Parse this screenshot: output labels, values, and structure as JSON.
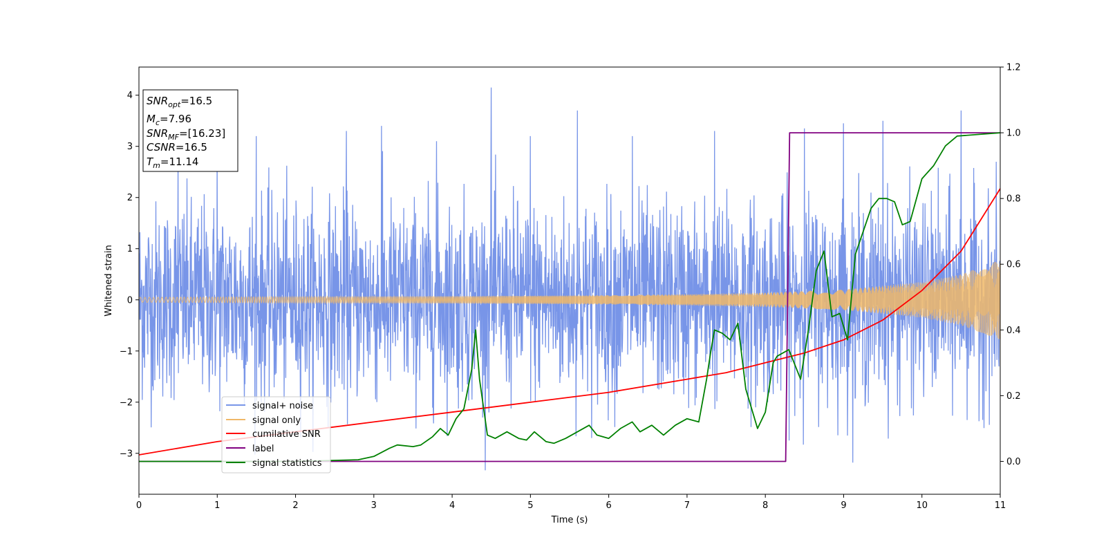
{
  "chart_data": {
    "type": "line",
    "xlabel": "Time (s)",
    "ylabel": "Whitened strain",
    "xlim": [
      0,
      11
    ],
    "ylim": [
      -3.8,
      4.55
    ],
    "y2lim": [
      -0.1,
      1.2
    ],
    "x_ticks": [
      "0",
      "1",
      "2",
      "3",
      "4",
      "5",
      "6",
      "7",
      "8",
      "9",
      "10",
      "11"
    ],
    "y_ticks": [
      "−3",
      "−2",
      "−1",
      "0",
      "1",
      "2",
      "3",
      "4"
    ],
    "y2_ticks": [
      "0.0",
      "0.2",
      "0.4",
      "0.6",
      "0.8",
      "1.0",
      "1.2"
    ],
    "grid": false,
    "legend_position": "lower-left",
    "annotation": {
      "line1": {
        "base": "SNR",
        "sub": "opt",
        "value": "=16.5"
      },
      "line2": {
        "base": "M",
        "sub": "c",
        "value": "=7.96"
      },
      "line3": {
        "base": "SNR",
        "sub": "MF",
        "value": "=[16.23]"
      },
      "line4": {
        "base": "CSNR",
        "sub": "",
        "value": "=16.5"
      },
      "line5": {
        "base": "T",
        "sub": "m",
        "value": "=11.14"
      }
    },
    "series": [
      {
        "name": "signal+ noise",
        "color": "#7895e8",
        "axis": "left",
        "style": "dense noise band",
        "peaks_x": [
          0.5,
          1.0,
          1.5,
          2.65,
          3.1,
          3.8,
          4.5,
          5.0,
          5.6,
          6.3,
          7.35,
          8.5,
          9.0,
          9.5,
          10.5
        ],
        "peaks_y": [
          2.9,
          3.1,
          3.2,
          3.3,
          3.4,
          3.1,
          4.15,
          3.2,
          3.7,
          3.2,
          3.3,
          3.35,
          3.45,
          3.5,
          3.7
        ]
      },
      {
        "name": "signal only",
        "color": "#f0b868",
        "axis": "left",
        "style": "chirp envelope",
        "x": [
          0,
          2,
          4,
          6,
          7,
          8,
          9,
          10,
          10.5,
          11
        ],
        "amplitude": [
          0.05,
          0.06,
          0.07,
          0.09,
          0.11,
          0.14,
          0.2,
          0.35,
          0.5,
          0.78
        ]
      },
      {
        "name": "cumilative SNR",
        "color": "#ff0000",
        "axis": "right",
        "x": [
          0,
          1,
          2,
          3,
          4,
          5,
          6,
          7,
          7.5,
          8,
          8.5,
          9,
          9.5,
          10,
          10.5,
          11
        ],
        "values": [
          0.02,
          0.06,
          0.09,
          0.12,
          0.15,
          0.18,
          0.21,
          0.25,
          0.27,
          0.3,
          0.33,
          0.37,
          0.43,
          0.52,
          0.64,
          0.83
        ]
      },
      {
        "name": "label",
        "color": "#800080",
        "axis": "right",
        "x": [
          0,
          8.26,
          8.31,
          11
        ],
        "values": [
          0.0,
          0.0,
          1.0,
          1.0
        ]
      },
      {
        "name": "signal statistics",
        "color": "#008000",
        "axis": "right",
        "x": [
          0,
          1,
          2,
          2.8,
          3.0,
          3.2,
          3.3,
          3.5,
          3.6,
          3.75,
          3.85,
          3.95,
          4.05,
          4.15,
          4.25,
          4.3,
          4.35,
          4.45,
          4.55,
          4.7,
          4.85,
          4.95,
          5.05,
          5.2,
          5.3,
          5.45,
          5.6,
          5.75,
          5.85,
          6.0,
          6.15,
          6.3,
          6.4,
          6.55,
          6.7,
          6.85,
          7.0,
          7.15,
          7.25,
          7.3,
          7.35,
          7.45,
          7.55,
          7.65,
          7.75,
          7.9,
          8.0,
          8.1,
          8.15,
          8.3,
          8.45,
          8.55,
          8.65,
          8.75,
          8.85,
          8.95,
          9.05,
          9.15,
          9.25,
          9.35,
          9.45,
          9.55,
          9.65,
          9.75,
          9.85,
          10.0,
          10.15,
          10.3,
          10.45,
          11
        ],
        "values": [
          0.0,
          0.0,
          0.0,
          0.005,
          0.015,
          0.04,
          0.05,
          0.045,
          0.05,
          0.075,
          0.1,
          0.08,
          0.13,
          0.16,
          0.28,
          0.4,
          0.25,
          0.08,
          0.07,
          0.09,
          0.07,
          0.065,
          0.09,
          0.06,
          0.055,
          0.07,
          0.09,
          0.11,
          0.08,
          0.07,
          0.1,
          0.12,
          0.09,
          0.11,
          0.08,
          0.11,
          0.13,
          0.12,
          0.25,
          0.33,
          0.4,
          0.39,
          0.37,
          0.42,
          0.22,
          0.1,
          0.15,
          0.3,
          0.32,
          0.34,
          0.25,
          0.4,
          0.58,
          0.64,
          0.44,
          0.45,
          0.37,
          0.63,
          0.7,
          0.77,
          0.8,
          0.8,
          0.79,
          0.72,
          0.73,
          0.86,
          0.9,
          0.96,
          0.99,
          1.0
        ]
      }
    ]
  }
}
